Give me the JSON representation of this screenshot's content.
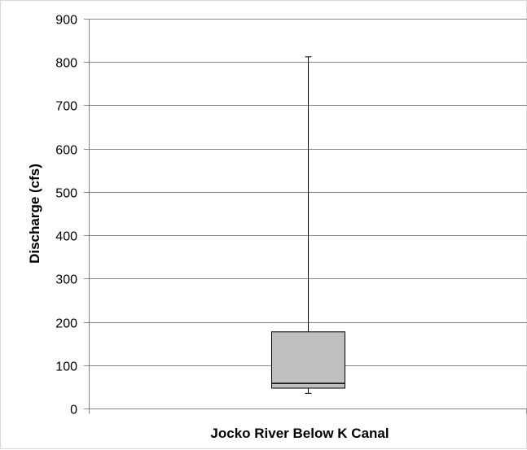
{
  "chart_data": {
    "type": "box",
    "xlabel": "Jocko River Below K Canal",
    "ylabel": "Discharge (cfs)",
    "ylim": [
      0,
      900
    ],
    "yticks": [
      0,
      100,
      200,
      300,
      400,
      500,
      600,
      700,
      800,
      900
    ],
    "grid": "horizontal",
    "categories": [
      "Jocko River Below K Canal"
    ],
    "boxes": [
      {
        "category": "Jocko River Below K Canal",
        "min": 35,
        "q1": 47,
        "median": 58,
        "q3": 177,
        "max": 812
      }
    ],
    "colors": {
      "box_fill": "#c0c0c0",
      "box_stroke": "#000000",
      "grid": "#868686",
      "axis": "#868686"
    }
  }
}
